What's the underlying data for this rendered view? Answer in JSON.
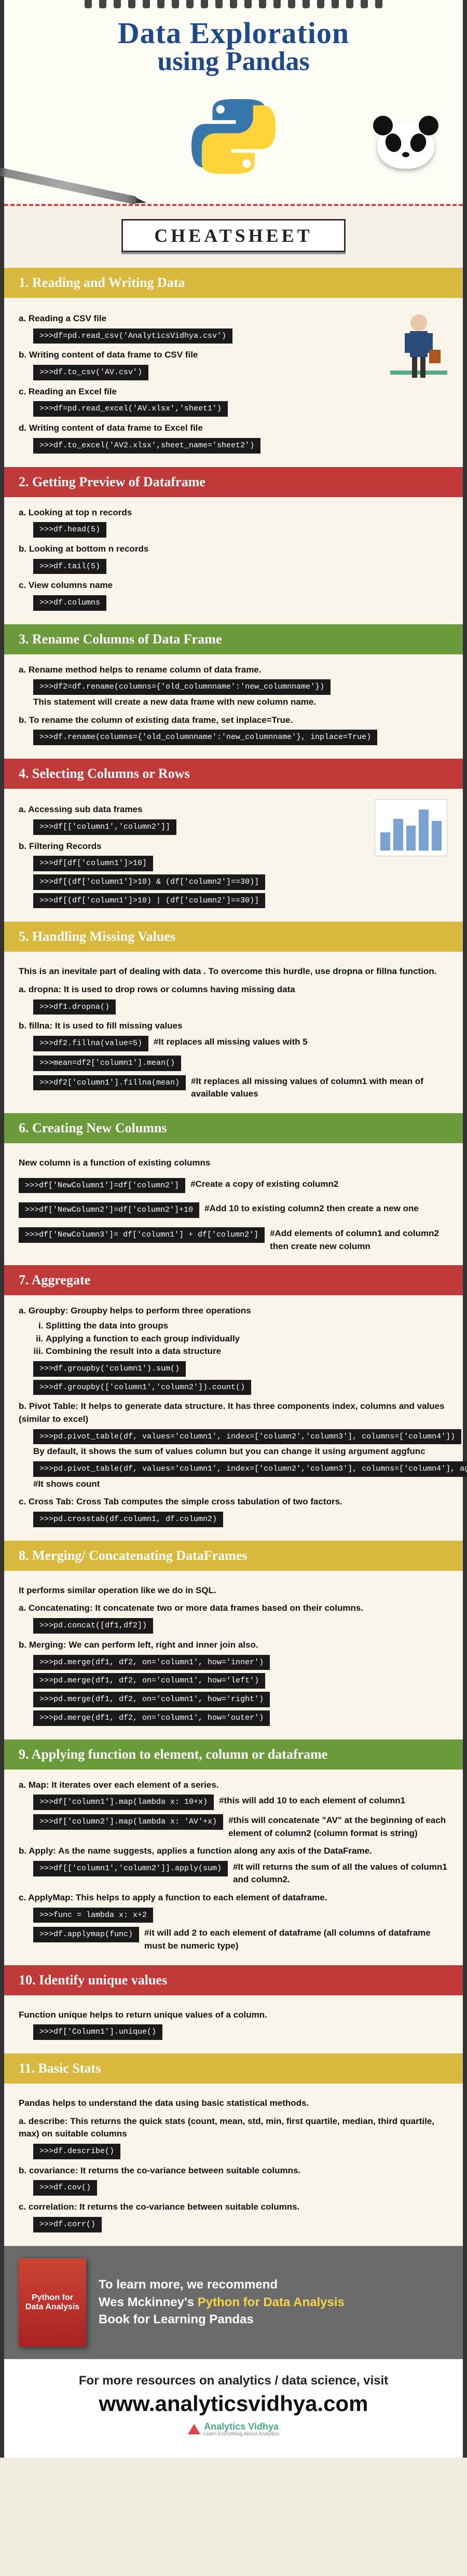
{
  "header": {
    "title_line1": "Data Exploration",
    "title_line2": "using Pandas",
    "banner": "CHEATSHEET"
  },
  "sections": [
    {
      "num": "1",
      "title": "Reading and Writing Data",
      "color": "c1",
      "has_man_illus": true,
      "items": [
        {
          "label": "a. Reading a CSV file",
          "codes": [
            ">>>df=pd.read_csv('AnalyticsVidhya.csv')"
          ]
        },
        {
          "label": "b. Writing content of data frame to CSV file",
          "codes": [
            ">>>df.to_csv('AV.csv')"
          ]
        },
        {
          "label": "c. Reading an Excel file",
          "codes": [
            ">>>df=pd.read_excel('AV.xlsx','sheet1')"
          ]
        },
        {
          "label": "d. Writing content of data frame to Excel file",
          "codes": [
            ">>>df.to_excel('AV2.xlsx',sheet_name='sheet2')"
          ]
        }
      ]
    },
    {
      "num": "2",
      "title": "Getting Preview of Dataframe",
      "color": "c2",
      "items": [
        {
          "label": "a. Looking at top n records",
          "codes": [
            ">>>df.head(5)"
          ]
        },
        {
          "label": "b. Looking at bottom n records",
          "codes": [
            ">>>df.tail(5)"
          ]
        },
        {
          "label": "c. View columns name",
          "codes": [
            ">>>df.columns"
          ]
        }
      ]
    },
    {
      "num": "3",
      "title": "Rename Columns of Data Frame",
      "color": "c3",
      "items": [
        {
          "label": "a. Rename method helps to rename column of data frame.",
          "codes": [
            ">>>df2=df.rename(columns={'old_columnname':'new_columnname'})"
          ],
          "note": "This statement will create a new data frame with new column name."
        },
        {
          "label": "b. To rename the column of existing data frame, set inplace=True.",
          "codes": [
            ">>>df.rename(columns={'old_columnname':'new_columnname'}, inplace=True)"
          ]
        }
      ]
    },
    {
      "num": "4",
      "title": "Selecting Columns or Rows",
      "color": "c4",
      "has_chart_illus": true,
      "items": [
        {
          "label": "a. Accessing sub data frames",
          "codes": [
            ">>>df[['column1','column2']]"
          ]
        },
        {
          "label": "b. Filtering Records",
          "codes": [
            ">>>df[df['column1']>10]",
            ">>>df[(df['column1']>10) & (df['column2']==30)]",
            ">>>df[(df['column1']>10) | (df['column2']==30)]"
          ]
        }
      ]
    },
    {
      "num": "5",
      "title": "Handling Missing Values",
      "color": "c5",
      "intro": "This is an inevitale part of dealing with data . To overcome this hurdle, use dropna or fillna function.",
      "items": [
        {
          "label": "a. dropna: It is used to drop rows or columns having missing data",
          "codes": [
            ">>>df1.dropna()"
          ]
        },
        {
          "label": "b. fillna: It is used to fill missing values",
          "codes_inline": [
            {
              "code": ">>>df2.fillna(value=5)",
              "inline": "#It replaces all missing values with 5"
            },
            {
              "code": ">>>mean=df2['column1'].mean()"
            },
            {
              "code": ">>>df2['column1'].fillna(mean)",
              "inline": "#It replaces all missing values of column1 with mean of available values"
            }
          ]
        }
      ]
    },
    {
      "num": "6",
      "title": "Creating New Columns",
      "color": "c6",
      "intro": "New column is a function of existing columns",
      "items_inline": [
        {
          "code": ">>>df['NewColumn1']=df['column2']",
          "inline": "#Create a copy of existing column2"
        },
        {
          "code": ">>>df['NewColumn2']=df['column2']+10",
          "inline": "#Add 10 to existing column2 then create a new one"
        },
        {
          "code": ">>>df['NewColumn3']= df['column1'] + df['column2']",
          "inline": "#Add elements of column1 and column2 then create new column"
        }
      ]
    },
    {
      "num": "7",
      "title": "Aggregate",
      "color": "c7",
      "items": [
        {
          "label": "a. Groupby: Groupby helps to perform three operations",
          "sublist": [
            "Splitting the data into groups",
            "Applying a function to each group individually",
            "Combining the result into a data structure"
          ],
          "codes": [
            ">>>df.groupby('column1').sum()",
            ">>>df.groupby(['column1','column2']).count()"
          ]
        },
        {
          "label": "b. Pivot Table: It helps to generate data structure. It has three components index, columns and values (similar to excel)",
          "codes": [
            ">>>pd.pivot_table(df, values='column1', index=['column2','column3'], columns=['column4'])"
          ],
          "note": "By default, it shows the sum of values column but you can change it using argument aggfunc",
          "codes2": [
            ">>>pd.pivot_table(df, values='column1', index=['column2','column3'], columns=['column4'], aggfunc=len)"
          ],
          "note2": "#It shows count"
        },
        {
          "label": "c. Cross Tab: Cross Tab computes the simple cross tabulation of two factors.",
          "codes": [
            ">>>pd.crosstab(df.column1, df.column2)"
          ]
        }
      ]
    },
    {
      "num": "8",
      "title": "Merging/ Concatenating DataFrames",
      "color": "c8",
      "intro": "It performs similar operation like we do in SQL.",
      "items": [
        {
          "label": "a. Concatenating: It concatenate two or more data frames based on their columns.",
          "codes": [
            ">>>pd.concat([df1,df2])"
          ]
        },
        {
          "label": "b. Merging: We can perform left, right and inner join also.",
          "codes": [
            ">>>pd.merge(df1, df2, on='column1', how='inner')",
            ">>>pd.merge(df1, df2, on='column1', how='left')",
            ">>>pd.merge(df1, df2, on='column1', how='right')",
            ">>>pd.merge(df1, df2, on='column1', how='outer')"
          ]
        }
      ]
    },
    {
      "num": "9",
      "title": "Applying function to element, column or dataframe",
      "color": "c9",
      "items": [
        {
          "label": "a. Map: It iterates over each element of a series.",
          "codes_inline": [
            {
              "code": ">>>df['column1'].map(lambda x: 10+x)",
              "inline": "#this will add 10 to each element of column1"
            },
            {
              "code": ">>>df['column2'].map(lambda x: 'AV'+x)",
              "inline": "#this will concatenate \"AV\" at the beginning of each element of column2 (column format is string)"
            }
          ]
        },
        {
          "label": "b. Apply: As the name suggests, applies a function along any axis of the DataFrame.",
          "codes_inline": [
            {
              "code": ">>>df[['column1','column2']].apply(sum)",
              "inline": "#It will returns the sum of all the values of column1 and column2."
            }
          ]
        },
        {
          "label": "c. ApplyMap: This helps to apply a function to each element of dataframe.",
          "codes": [
            ">>>func = lambda x: x+2"
          ],
          "codes_inline": [
            {
              "code": ">>>df.applymap(func)",
              "inline": "#it will add 2 to each element of dataframe (all columns of dataframe must be numeric type)"
            }
          ]
        }
      ]
    },
    {
      "num": "10",
      "title": "Identify unique values",
      "color": "c10",
      "intro": "Function unique helps to return unique values of a column.",
      "simple_code": ">>>df['Column1'].unique()"
    },
    {
      "num": "11",
      "title": "Basic Stats",
      "color": "c11",
      "intro": "Pandas helps to understand the data using basic statistical methods.",
      "items": [
        {
          "label": "a. describe: This returns the quick stats (count, mean, std, min, first quartile, median, third quartile, max) on suitable columns",
          "codes": [
            ">>>df.describe()"
          ]
        },
        {
          "label": "b. covariance: It returns the co-variance between suitable columns.",
          "codes": [
            ">>>df.cov()"
          ]
        },
        {
          "label": "c. correlation: It returns the co-variance between suitable columns.",
          "codes": [
            ">>>df.corr()"
          ]
        }
      ]
    }
  ],
  "reco": {
    "book_title": "Python for Data Analysis",
    "line1": "To learn more, we recommend",
    "line2_pre": "Wes Mckinney's ",
    "line2_hl": "Python for Data Analysis",
    "line3": "Book for Learning Pandas"
  },
  "footer": {
    "line1": "For more resources on analytics / data science, visit",
    "url": "www.analyticsvidhya.com",
    "logo_text": "Analytics Vidhya",
    "logo_tag": "Learn Everything About Analytics"
  },
  "colors": {
    "blue_title": "#1e4a8c",
    "yellow": "#d9b83e",
    "red": "#c03a3a",
    "green": "#6b9a3b",
    "code_bg": "#1a1a1a",
    "paper_bg": "#f5f1e6",
    "reco_bg": "#6b6b6b"
  }
}
